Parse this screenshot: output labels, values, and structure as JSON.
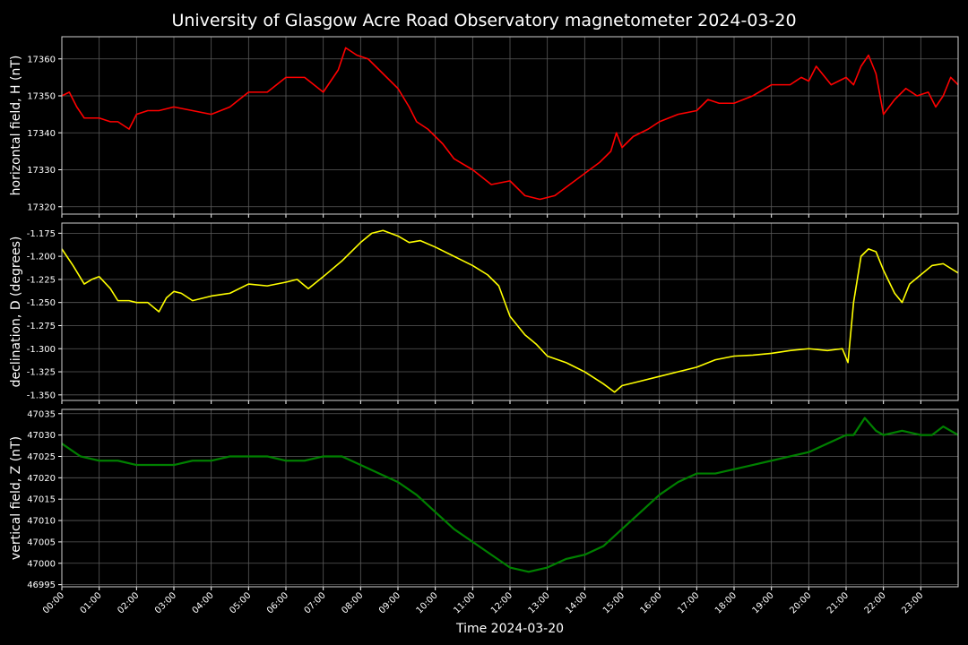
{
  "chart_data": {
    "title": "University of Glasgow Acre Road Observatory magnetometer 2024-03-20",
    "xlabel": "Time 2024-03-20",
    "x_ticks": [
      "00:00",
      "01:00",
      "02:00",
      "03:00",
      "04:00",
      "05:00",
      "06:00",
      "07:00",
      "08:00",
      "09:00",
      "10:00",
      "11:00",
      "12:00",
      "13:00",
      "14:00",
      "15:00",
      "16:00",
      "17:00",
      "18:00",
      "19:00",
      "20:00",
      "21:00",
      "22:00",
      "23:00"
    ],
    "x_range_hours": [
      0,
      24
    ],
    "grid": true,
    "panels": [
      {
        "type": "line",
        "ylabel": "horizontal field, H (nT)",
        "color": "#ff0000",
        "ylim": [
          17318,
          17366
        ],
        "yticks": [
          17320,
          17330,
          17340,
          17350,
          17360
        ],
        "ytick_labels": [
          "17320",
          "17330",
          "17340",
          "17350",
          "17360"
        ],
        "x_hours": [
          0,
          0.2,
          0.4,
          0.6,
          1.0,
          1.3,
          1.5,
          1.8,
          2.0,
          2.3,
          2.6,
          3.0,
          3.5,
          4.0,
          4.5,
          5.0,
          5.5,
          6.0,
          6.5,
          7.0,
          7.4,
          7.6,
          7.9,
          8.2,
          8.6,
          9.0,
          9.3,
          9.5,
          9.8,
          10.2,
          10.5,
          11.0,
          11.5,
          12.0,
          12.4,
          12.8,
          13.2,
          13.6,
          14.0,
          14.4,
          14.7,
          14.85,
          15.0,
          15.3,
          15.7,
          16.0,
          16.5,
          17.0,
          17.3,
          17.6,
          18.0,
          18.5,
          19.0,
          19.5,
          19.8,
          20.0,
          20.2,
          20.6,
          21.0,
          21.2,
          21.4,
          21.6,
          21.8,
          22.0,
          22.3,
          22.6,
          22.9,
          23.2,
          23.4,
          23.6,
          23.8,
          24.0
        ],
        "values": [
          17350,
          17351,
          17347,
          17344,
          17344,
          17343,
          17343,
          17341,
          17345,
          17346,
          17346,
          17347,
          17346,
          17345,
          17347,
          17351,
          17351,
          17355,
          17355,
          17351,
          17357,
          17363,
          17361,
          17360,
          17356,
          17352,
          17347,
          17343,
          17341,
          17337,
          17333,
          17330,
          17326,
          17327,
          17323,
          17322,
          17323,
          17326,
          17329,
          17332,
          17335,
          17340,
          17336,
          17339,
          17341,
          17343,
          17345,
          17346,
          17349,
          17348,
          17348,
          17350,
          17353,
          17353,
          17355,
          17354,
          17358,
          17353,
          17355,
          17353,
          17358,
          17361,
          17356,
          17345,
          17349,
          17352,
          17350,
          17351,
          17347,
          17350,
          17355,
          17353
        ]
      },
      {
        "type": "line",
        "ylabel": "declination, D (degrees)",
        "color": "#ffff00",
        "ylim": [
          -1.356,
          -1.164
        ],
        "yticks": [
          -1.175,
          -1.2,
          -1.225,
          -1.25,
          -1.275,
          -1.3,
          -1.325,
          -1.35
        ],
        "ytick_labels": [
          "-1.175",
          "-1.200",
          "-1.225",
          "-1.250",
          "-1.275",
          "-1.300",
          "-1.325",
          "-1.350"
        ],
        "x_hours": [
          0,
          0.3,
          0.6,
          0.8,
          1.0,
          1.3,
          1.5,
          1.8,
          2.0,
          2.3,
          2.6,
          2.8,
          3.0,
          3.2,
          3.5,
          4.0,
          4.5,
          5.0,
          5.5,
          6.0,
          6.3,
          6.6,
          7.0,
          7.5,
          8.0,
          8.3,
          8.6,
          9.0,
          9.3,
          9.6,
          10.0,
          10.5,
          11.0,
          11.4,
          11.7,
          12.0,
          12.4,
          12.7,
          13.0,
          13.5,
          14.0,
          14.5,
          14.8,
          15.0,
          15.5,
          16.0,
          16.5,
          17.0,
          17.5,
          18.0,
          18.5,
          19.0,
          19.5,
          20.0,
          20.5,
          20.9,
          21.05,
          21.2,
          21.4,
          21.6,
          21.8,
          22.0,
          22.3,
          22.5,
          22.7,
          23.0,
          23.3,
          23.6,
          24.0
        ],
        "values": [
          -1.192,
          -1.21,
          -1.23,
          -1.225,
          -1.222,
          -1.235,
          -1.248,
          -1.248,
          -1.25,
          -1.25,
          -1.26,
          -1.245,
          -1.238,
          -1.24,
          -1.248,
          -1.243,
          -1.24,
          -1.23,
          -1.232,
          -1.228,
          -1.225,
          -1.235,
          -1.222,
          -1.205,
          -1.185,
          -1.175,
          -1.172,
          -1.178,
          -1.185,
          -1.183,
          -1.19,
          -1.2,
          -1.21,
          -1.22,
          -1.232,
          -1.265,
          -1.285,
          -1.295,
          -1.308,
          -1.315,
          -1.325,
          -1.338,
          -1.347,
          -1.34,
          -1.335,
          -1.33,
          -1.325,
          -1.32,
          -1.312,
          -1.308,
          -1.307,
          -1.305,
          -1.302,
          -1.3,
          -1.302,
          -1.3,
          -1.315,
          -1.25,
          -1.2,
          -1.192,
          -1.195,
          -1.215,
          -1.24,
          -1.25,
          -1.23,
          -1.22,
          -1.21,
          -1.208,
          -1.218
        ]
      },
      {
        "type": "line",
        "ylabel": "vertical field, Z (nT)",
        "color": "#008000",
        "ylim": [
          46994.5,
          47036
        ],
        "yticks": [
          46995,
          47000,
          47005,
          47010,
          47015,
          47020,
          47025,
          47030,
          47035
        ],
        "ytick_labels": [
          "46995",
          "47000",
          "47005",
          "47010",
          "47015",
          "47020",
          "47025",
          "47030",
          "47035"
        ],
        "x_hours": [
          0,
          0.5,
          1.0,
          1.5,
          2.0,
          2.5,
          3.0,
          3.5,
          4.0,
          4.5,
          5.0,
          5.5,
          6.0,
          6.5,
          7.0,
          7.5,
          8.0,
          8.5,
          9.0,
          9.5,
          10.0,
          10.5,
          11.0,
          11.5,
          12.0,
          12.5,
          13.0,
          13.5,
          14.0,
          14.5,
          15.0,
          15.5,
          16.0,
          16.5,
          17.0,
          17.5,
          18.0,
          18.5,
          19.0,
          19.5,
          20.0,
          20.5,
          21.0,
          21.2,
          21.5,
          21.8,
          22.0,
          22.5,
          23.0,
          23.3,
          23.6,
          24.0
        ],
        "values": [
          47028,
          47025,
          47024,
          47024,
          47023,
          47023,
          47023,
          47024,
          47024,
          47025,
          47025,
          47025,
          47024,
          47024,
          47025,
          47025,
          47023,
          47021,
          47019,
          47016,
          47012,
          47008,
          47005,
          47002,
          46999,
          46998,
          46999,
          47001,
          47002,
          47004,
          47008,
          47012,
          47016,
          47019,
          47021,
          47021,
          47022,
          47023,
          47024,
          47025,
          47026,
          47028,
          47030,
          47030,
          47034,
          47031,
          47030,
          47031,
          47030,
          47030,
          47032,
          47030
        ]
      }
    ]
  }
}
